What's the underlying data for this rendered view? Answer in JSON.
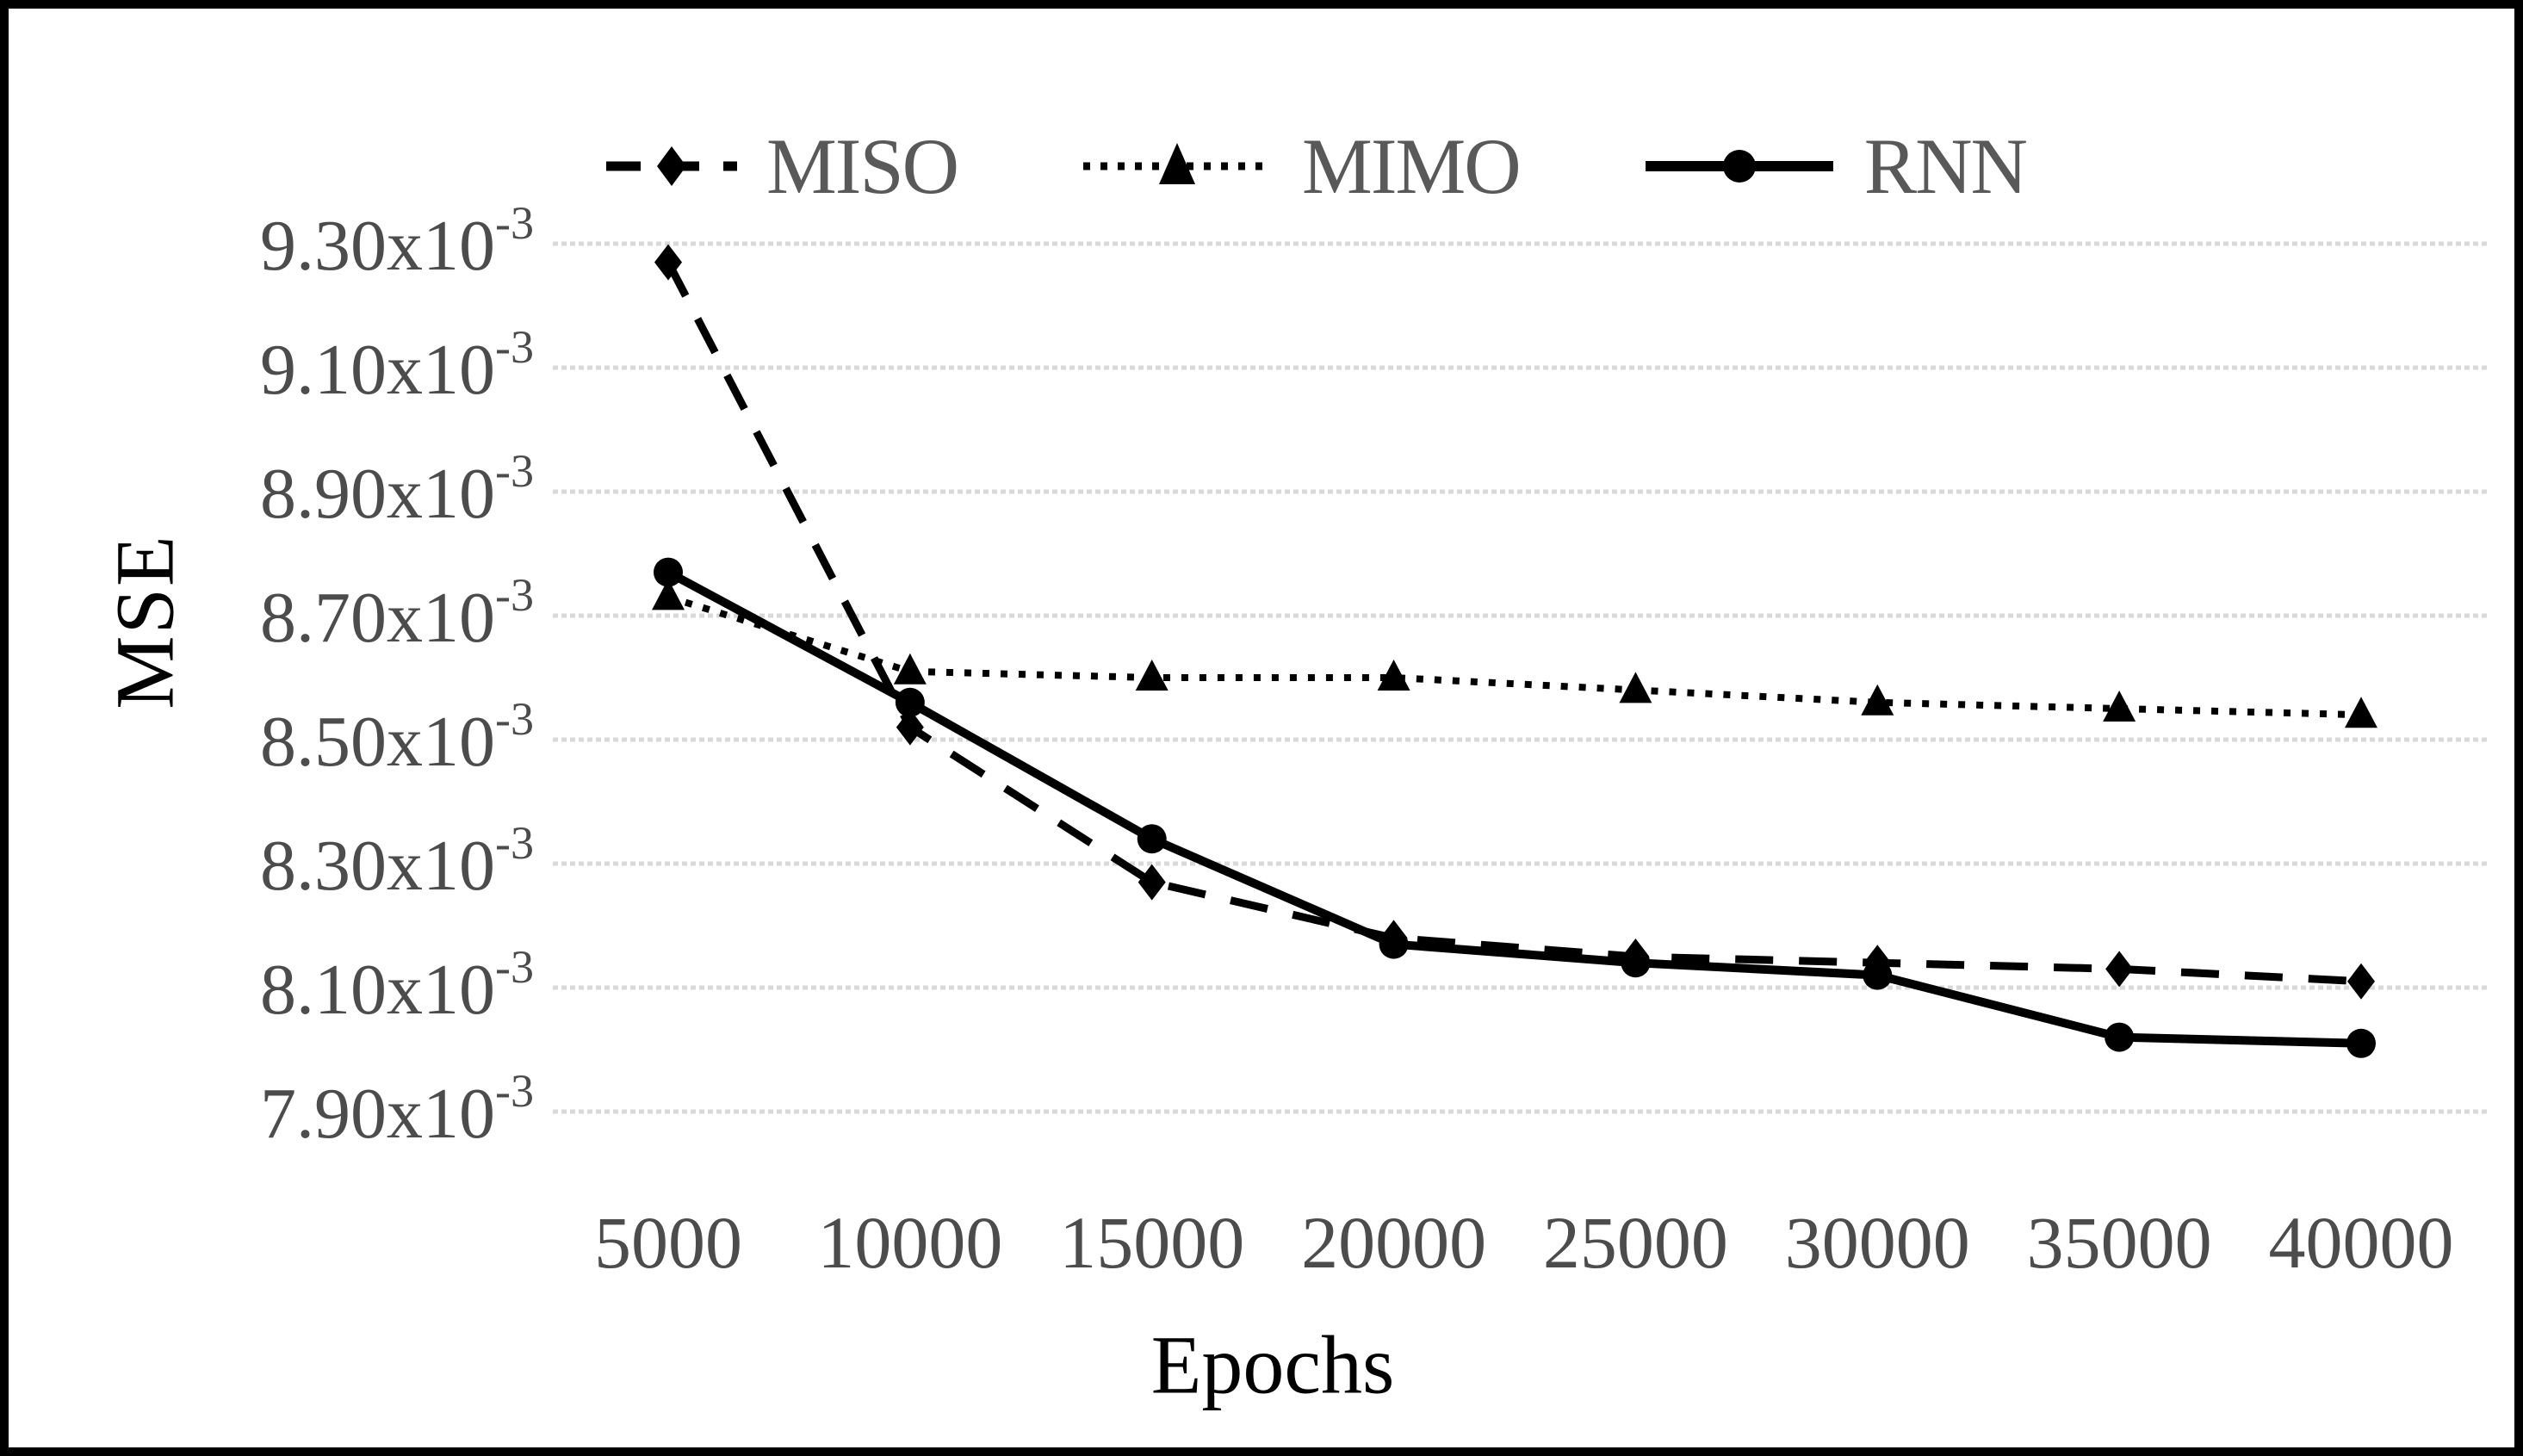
{
  "axes": {
    "y_title": "MSE",
    "x_title": "Epochs"
  },
  "legend": {
    "items": [
      {
        "label": "MISO",
        "marker": "diamond",
        "line_style": "dashed"
      },
      {
        "label": "MIMO",
        "marker": "triangle",
        "line_style": "dotted"
      },
      {
        "label": "RNN",
        "marker": "circle",
        "line_style": "solid"
      }
    ]
  },
  "chart_data": {
    "type": "line",
    "title": "",
    "xlabel": "Epochs",
    "ylabel": "MSE",
    "grid": true,
    "legend_position": "top",
    "x": [
      5000,
      10000,
      15000,
      20000,
      25000,
      30000,
      35000,
      40000
    ],
    "x_tick_labels": [
      "5000",
      "10000",
      "15000",
      "20000",
      "25000",
      "30000",
      "35000",
      "40000"
    ],
    "y_ticks_e3": [
      9.3,
      9.1,
      8.9,
      8.7,
      8.5,
      8.3,
      8.1,
      7.9
    ],
    "y_tick_mantissas": [
      "9.30",
      "9.10",
      "8.90",
      "8.70",
      "8.50",
      "8.30",
      "8.10",
      "7.90"
    ],
    "y_tick_multiplier": "x10",
    "y_tick_exponent": "-3",
    "ylim_e3": [
      7.9,
      9.3
    ],
    "series": [
      {
        "name": "MISO",
        "line_style": "dashed",
        "marker": "diamond",
        "values_e3": [
          9.27,
          8.52,
          8.27,
          8.18,
          8.15,
          8.14,
          8.13,
          8.11
        ]
      },
      {
        "name": "MIMO",
        "line_style": "dotted",
        "marker": "triangle",
        "values_e3": [
          8.73,
          8.61,
          8.6,
          8.6,
          8.58,
          8.56,
          8.55,
          8.54
        ]
      },
      {
        "name": "RNN",
        "line_style": "solid",
        "marker": "circle",
        "values_e3": [
          8.77,
          8.56,
          8.34,
          8.17,
          8.14,
          8.12,
          8.02,
          8.01
        ]
      }
    ]
  },
  "colors": {
    "series": "#000000",
    "grid": "#d9d9d9",
    "tick_text": "#4c4c4c",
    "legend_text": "#595959",
    "axis_title": "#000000",
    "border": "#000000",
    "background": "#ffffff"
  }
}
